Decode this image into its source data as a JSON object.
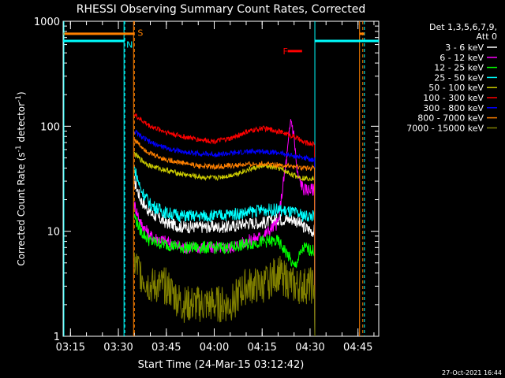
{
  "chart_data": {
    "type": "line",
    "title": "RHESSI Observing Summary Count Rates, Corrected",
    "xlabel": "Start Time (24-Mar-15 03:12:42)",
    "ylabel_parts": [
      "Corrected Count Rate (s",
      "-1",
      " detector",
      "-1",
      ")"
    ],
    "y_scale": "log",
    "ylim": [
      1,
      1000
    ],
    "xlim": [
      "03:12:42",
      "04:51:30"
    ],
    "x_ticks": [
      "03:15",
      "03:30",
      "03:45",
      "04:00",
      "04:15",
      "04:30",
      "04:45"
    ],
    "y_ticks": [
      "1",
      "10",
      "100",
      "1000"
    ],
    "legend_header": [
      "Det 1,3,5,6,7,9,",
      "Att 0"
    ],
    "legend_position": "top-right",
    "timestamp": "27-Oct-2021 16:44",
    "data_start": "03:35:00",
    "data_end": "04:31:30",
    "series": [
      {
        "name": "3 - 6 keV",
        "color": "#ffffff",
        "x": [
          "03:35",
          "03:37",
          "03:40",
          "03:45",
          "03:50",
          "03:55",
          "04:00",
          "04:05",
          "04:10",
          "04:15",
          "04:20",
          "04:25",
          "04:28",
          "04:31"
        ],
        "y": [
          30,
          20,
          15,
          12,
          11,
          11,
          11,
          11,
          12,
          12,
          13,
          13,
          11,
          10
        ]
      },
      {
        "name": "6 - 12 keV",
        "color": "#ff00ff",
        "x": [
          "03:35",
          "03:37",
          "03:40",
          "03:45",
          "03:50",
          "03:55",
          "04:00",
          "04:05",
          "04:10",
          "04:15",
          "04:20",
          "04:23",
          "04:24",
          "04:25",
          "04:26",
          "04:28",
          "04:31"
        ],
        "y": [
          18,
          12,
          9,
          8,
          7,
          7,
          7,
          7,
          8,
          9,
          12,
          60,
          120,
          80,
          35,
          25,
          25
        ]
      },
      {
        "name": "12 - 25 keV",
        "color": "#00ff00",
        "x": [
          "03:35",
          "03:37",
          "03:40",
          "03:45",
          "03:50",
          "03:55",
          "04:00",
          "04:05",
          "04:10",
          "04:15",
          "04:20",
          "04:23",
          "04:25",
          "04:28",
          "04:31"
        ],
        "y": [
          14,
          10,
          8,
          7.5,
          7,
          7,
          7,
          7,
          7.5,
          8,
          8,
          6,
          4.5,
          7,
          6.5
        ]
      },
      {
        "name": "25 - 50 keV",
        "color": "#00ffff",
        "x": [
          "03:35",
          "03:37",
          "03:40",
          "03:45",
          "03:50",
          "03:55",
          "04:00",
          "04:05",
          "04:10",
          "04:15",
          "04:20",
          "04:25",
          "04:28",
          "04:31"
        ],
        "y": [
          40,
          25,
          18,
          15,
          14,
          14,
          14,
          14.5,
          15,
          16,
          16,
          15,
          14,
          14
        ]
      },
      {
        "name": "50 - 100 keV",
        "color": "#cccc00",
        "x": [
          "03:35",
          "03:37",
          "03:40",
          "03:45",
          "03:50",
          "03:55",
          "04:00",
          "04:05",
          "04:10",
          "04:15",
          "04:20",
          "04:25",
          "04:28",
          "04:31"
        ],
        "y": [
          55,
          48,
          42,
          38,
          35,
          33,
          32,
          34,
          38,
          42,
          40,
          34,
          32,
          32
        ]
      },
      {
        "name": "100 - 300 keV",
        "color": "#ff0000",
        "x": [
          "03:35",
          "03:37",
          "03:40",
          "03:45",
          "03:50",
          "03:55",
          "04:00",
          "04:05",
          "04:10",
          "04:15",
          "04:20",
          "04:25",
          "04:28",
          "04:31"
        ],
        "y": [
          130,
          115,
          100,
          88,
          80,
          75,
          72,
          76,
          88,
          96,
          90,
          80,
          70,
          68
        ]
      },
      {
        "name": "300 - 800 keV",
        "color": "#0000ff",
        "x": [
          "03:35",
          "03:37",
          "03:40",
          "03:45",
          "03:50",
          "03:55",
          "04:00",
          "04:05",
          "04:10",
          "04:15",
          "04:20",
          "04:25",
          "04:28",
          "04:31"
        ],
        "y": [
          90,
          80,
          70,
          62,
          57,
          55,
          54,
          55,
          57,
          58,
          56,
          52,
          50,
          48
        ]
      },
      {
        "name": "800 - 7000 keV",
        "color": "#ff8000",
        "x": [
          "03:35",
          "03:37",
          "03:40",
          "03:45",
          "03:50",
          "03:55",
          "04:00",
          "04:05",
          "04:10",
          "04:15",
          "04:20",
          "04:25",
          "04:28",
          "04:31"
        ],
        "y": [
          75,
          65,
          55,
          48,
          45,
          42,
          41,
          42,
          43,
          44,
          43,
          41,
          40,
          40
        ]
      },
      {
        "name": "7000 - 15000 keV",
        "color": "#808000",
        "x": [
          "03:35",
          "03:37",
          "03:40",
          "03:45",
          "03:50",
          "03:55",
          "04:00",
          "04:05",
          "04:10",
          "04:15",
          "04:20",
          "04:25",
          "04:28",
          "04:31"
        ],
        "y": [
          5,
          4,
          3,
          3,
          2,
          2,
          2,
          2,
          3,
          3,
          4,
          3,
          3,
          3
        ]
      }
    ],
    "annotations": [
      {
        "label": "N",
        "color": "#00ffff",
        "line_x": "03:32:00",
        "bar_from": "03:12:42",
        "bar_to": "03:32:00",
        "bar_y": 650,
        "label_x": "03:32:30",
        "label_y": 600
      },
      {
        "label": "S",
        "color": "#ff8000",
        "line_x": "03:35:00",
        "bar_from": "03:12:42",
        "bar_to": "03:35:00",
        "bar_y": 760,
        "label_x": "03:36:00",
        "label_y": 780
      },
      {
        "label": "F",
        "color": "#ff0000",
        "line_x": null,
        "bar_from": "04:23:00",
        "bar_to": "04:27:30",
        "bar_y": 520,
        "label_x": "04:21:30",
        "label_y": 520
      }
    ],
    "vertical_lines": [
      {
        "x": "04:31:30",
        "color": "#00ffff",
        "dashed": false
      },
      {
        "x": "04:45:30",
        "color": "#ff8000",
        "dashed": false
      },
      {
        "x": "04:47:00",
        "color": "#00ffff",
        "dashed": true
      },
      {
        "x": "04:46:30",
        "color": "#ff8000",
        "dashed": true
      }
    ],
    "right_bars": [
      {
        "color": "#00ffff",
        "from": "04:31:30",
        "to": "04:51:30",
        "y": 650
      },
      {
        "color": "#ff8000",
        "from": "04:45:30",
        "to": "04:47:00",
        "y": 760
      }
    ]
  }
}
